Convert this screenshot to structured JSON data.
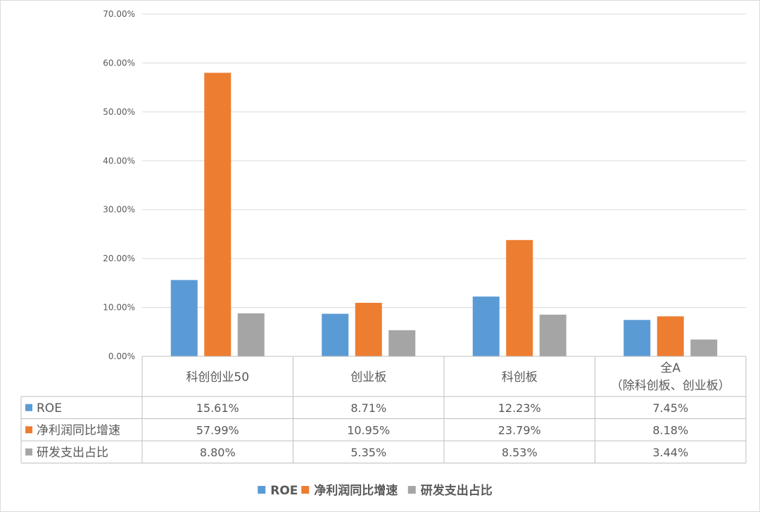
{
  "chart_data": {
    "type": "bar",
    "categories": [
      "科创创业50",
      "创业板",
      "科创板",
      "全A"
    ],
    "category_sublabels": [
      "",
      "",
      "",
      "（除科创板、创业板）"
    ],
    "series": [
      {
        "name": "ROE",
        "values": [
          15.61,
          8.71,
          12.23,
          7.45
        ],
        "labels": [
          "15.61%",
          "8.71%",
          "12.23%",
          "7.45%"
        ],
        "color": "#5b9bd5"
      },
      {
        "name": "净利润同比增速",
        "values": [
          57.99,
          10.95,
          23.79,
          8.18
        ],
        "labels": [
          "57.99%",
          "10.95%",
          "23.79%",
          "8.18%"
        ],
        "color": "#ed7d31"
      },
      {
        "name": "研发支出占比",
        "values": [
          8.8,
          5.35,
          8.53,
          3.44
        ],
        "labels": [
          "8.80%",
          "5.35%",
          "8.53%",
          "3.44%"
        ],
        "color": "#a5a5a5"
      }
    ],
    "ylim": [
      0,
      70
    ],
    "yticks": [
      0,
      10,
      20,
      30,
      40,
      50,
      60,
      70
    ],
    "ytick_labels": [
      "0.00%",
      "10.00%",
      "20.00%",
      "30.00%",
      "40.00%",
      "50.00%",
      "60.00%",
      "70.00%"
    ],
    "grid": true,
    "data_table": true,
    "legend_position": "bottom"
  }
}
